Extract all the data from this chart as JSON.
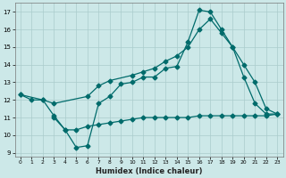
{
  "xlabel": "Humidex (Indice chaleur)",
  "background_color": "#cce8e8",
  "grid_color": "#aacccc",
  "line_color": "#006b6b",
  "xlim": [
    -0.5,
    23.5
  ],
  "ylim": [
    8.8,
    17.5
  ],
  "yticks": [
    9,
    10,
    11,
    12,
    13,
    14,
    15,
    16,
    17
  ],
  "xticks": [
    0,
    1,
    2,
    3,
    4,
    5,
    6,
    7,
    8,
    9,
    10,
    11,
    12,
    13,
    14,
    15,
    16,
    17,
    18,
    19,
    20,
    21,
    22,
    23
  ],
  "line1_x": [
    0,
    1,
    2,
    3,
    4,
    5,
    6,
    7,
    8,
    9,
    10,
    11,
    12,
    13,
    14,
    15,
    16,
    17,
    18,
    19,
    20,
    21,
    22,
    23
  ],
  "line1_y": [
    12.3,
    12.0,
    12.0,
    11.1,
    10.3,
    9.3,
    9.4,
    11.8,
    12.2,
    12.9,
    13.0,
    13.3,
    13.3,
    13.8,
    13.9,
    15.3,
    17.1,
    17.0,
    16.0,
    15.0,
    13.3,
    11.8,
    11.2,
    11.2
  ],
  "line2_x": [
    0,
    2,
    3,
    6,
    7,
    8,
    10,
    11,
    12,
    13,
    14,
    15,
    16,
    17,
    18,
    19,
    20,
    21,
    22,
    23
  ],
  "line2_y": [
    12.3,
    12.0,
    11.8,
    12.2,
    12.8,
    13.1,
    13.4,
    13.6,
    13.8,
    14.2,
    14.5,
    15.0,
    16.0,
    16.6,
    15.8,
    15.0,
    14.0,
    13.0,
    11.5,
    11.2
  ],
  "line3_x": [
    3,
    4,
    5,
    6,
    7,
    8,
    9,
    10,
    11,
    12,
    13,
    14,
    15,
    16,
    17,
    18,
    19,
    20,
    21,
    22,
    23
  ],
  "line3_y": [
    11.0,
    10.3,
    10.3,
    10.5,
    10.6,
    10.7,
    10.8,
    10.9,
    11.0,
    11.0,
    11.0,
    11.0,
    11.0,
    11.1,
    11.1,
    11.1,
    11.1,
    11.1,
    11.1,
    11.1,
    11.2
  ],
  "marker_size": 2.5,
  "line_width": 0.9
}
